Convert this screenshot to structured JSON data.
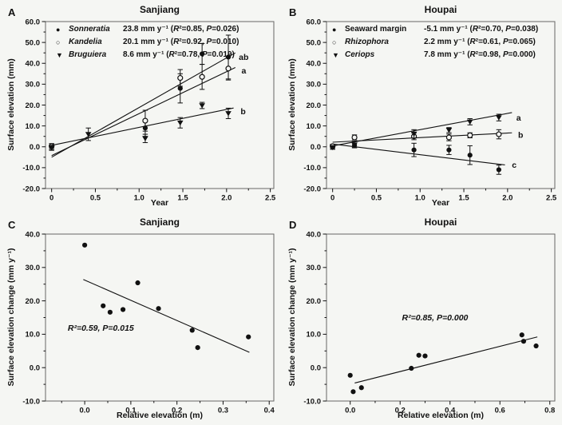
{
  "figure": {
    "background": "#f5f6f3",
    "ink": "#111111",
    "frame_color": "#666666"
  },
  "labels": {
    "open": "(",
    "close": ")",
    "sep": ", ",
    "r2_eq": "R²=",
    "p_eq": "P="
  },
  "glyphs": {
    "filled-circle": "●",
    "open-circle": "○",
    "filled-triangle": "▼"
  },
  "chart_data": [
    {
      "type": "scatter",
      "panel": "A",
      "title": "Sanjiang",
      "xlabel": "Year",
      "ylabel": "Surface elevation (mm)",
      "xlim": [
        -0.07,
        2.54
      ],
      "ylim": [
        -20,
        60
      ],
      "xticks": {
        "vals": [
          0,
          0.5,
          1.0,
          1.5,
          2.0,
          2.5
        ],
        "labels": [
          "0",
          "0.5",
          "1.0",
          "1.5",
          "2.0",
          "2.5"
        ],
        "minor": 0.25
      },
      "yticks": {
        "vals": [
          -20,
          -10,
          0,
          10,
          20,
          30,
          40,
          50,
          60
        ],
        "labels": [
          "-20.0",
          "-10.0",
          "0.0",
          "10.0",
          "20.0",
          "30.0",
          "40.0",
          "50.0",
          "60.0"
        ],
        "minor": 5
      },
      "legend": {
        "entries": [
          {
            "marker": "filled-circle",
            "name": "Sonneratia",
            "italic": true,
            "rate": "23.8 mm y⁻¹",
            "r2": "0.85",
            "p": "0.026"
          },
          {
            "marker": "open-circle",
            "name": "Kandelia",
            "italic": true,
            "rate": "20.1 mm y⁻¹",
            "r2": "0.92",
            "p": "0.010"
          },
          {
            "marker": "filled-triangle",
            "name": "Bruguiera",
            "italic": true,
            "rate": "8.6 mm y⁻¹",
            "r2": "0.78",
            "p": "0.019"
          }
        ]
      },
      "series": [
        {
          "name": "Sonneratia",
          "marker": "filled-circle",
          "points": [
            [
              0,
              0,
              1.5
            ],
            [
              1.07,
              9,
              4
            ],
            [
              1.47,
              28,
              7
            ],
            [
              1.72,
              44.5,
              5
            ],
            [
              2.02,
              43,
              10.5
            ]
          ],
          "line": [
            [
              0,
              -5
            ],
            [
              2.1,
              45
            ]
          ],
          "end_label": {
            "text": "ab",
            "x": 2.14,
            "y": 43
          }
        },
        {
          "name": "Kandelia",
          "marker": "open-circle",
          "points": [
            [
              0,
              0.3,
              1.2
            ],
            [
              1.07,
              12.5,
              5
            ],
            [
              1.47,
              33,
              4
            ],
            [
              1.72,
              33.5,
              6
            ],
            [
              2.02,
              37.5,
              5.5
            ]
          ],
          "line": [
            [
              0,
              -4.2
            ],
            [
              2.1,
              38
            ]
          ],
          "end_label": {
            "text": "a",
            "x": 2.17,
            "y": 36.5
          }
        },
        {
          "name": "Bruguiera",
          "marker": "filled-triangle",
          "points": [
            [
              0,
              -0.5,
              1.2
            ],
            [
              0.42,
              6,
              3
            ],
            [
              1.07,
              4,
              2
            ],
            [
              1.47,
              11.5,
              2.5
            ],
            [
              1.72,
              19.8,
              1.5
            ],
            [
              2.02,
              16,
              2.5
            ]
          ],
          "line": [
            [
              0,
              0.7
            ],
            [
              2.08,
              18.6
            ]
          ],
          "end_label": {
            "text": "b",
            "x": 2.16,
            "y": 17
          }
        }
      ],
      "annotation": null
    },
    {
      "type": "scatter",
      "panel": "B",
      "title": "Houpai",
      "xlabel": "Year",
      "ylabel": "Surface elevation (mm)",
      "xlim": [
        -0.07,
        2.54
      ],
      "ylim": [
        -20,
        60
      ],
      "xticks": {
        "vals": [
          0,
          0.5,
          1.0,
          1.5,
          2.0,
          2.5
        ],
        "labels": [
          "0",
          "0.5",
          "1.0",
          "1.5",
          "2.0",
          "2.5"
        ],
        "minor": 0.25
      },
      "yticks": {
        "vals": [
          -20,
          -10,
          0,
          10,
          20,
          30,
          40,
          50,
          60
        ],
        "labels": [
          "-20.0",
          "-10.0",
          "0.0",
          "10.0",
          "20.0",
          "30.0",
          "40.0",
          "50.0",
          "60.0"
        ],
        "minor": 5
      },
      "legend": {
        "entries": [
          {
            "marker": "filled-circle",
            "name": "Seaward margin",
            "italic": false,
            "rate": "-5.1 mm y⁻¹",
            "r2": "0.70",
            "p": "0.038"
          },
          {
            "marker": "open-circle",
            "name": "Rhizophora",
            "italic": true,
            "rate": "2.2 mm y⁻¹",
            "r2": "0.61",
            "p": "0.065"
          },
          {
            "marker": "filled-triangle",
            "name": "Ceriops",
            "italic": true,
            "rate": "7.8 mm y⁻¹",
            "r2": "0.98",
            "p": "0.000"
          }
        ]
      },
      "series": [
        {
          "name": "Seaward margin",
          "marker": "filled-circle",
          "points": [
            [
              0,
              0,
              1.2
            ],
            [
              0.25,
              0.8,
              1
            ],
            [
              0.93,
              -1.5,
              3.2
            ],
            [
              1.33,
              -1.5,
              2.2
            ],
            [
              1.57,
              -4,
              4.5
            ],
            [
              1.9,
              -11,
              2.2
            ]
          ],
          "line": [
            [
              0,
              1.3
            ],
            [
              1.97,
              -8.7
            ]
          ],
          "end_label": {
            "text": "c",
            "x": 2.05,
            "y": -8.8
          }
        },
        {
          "name": "Rhizophora",
          "marker": "open-circle",
          "points": [
            [
              0,
              0.3,
              0.8
            ],
            [
              0.25,
              4.5,
              1.2
            ],
            [
              0.93,
              5,
              1.6
            ],
            [
              1.33,
              4.5,
              1.6
            ],
            [
              1.57,
              5.5,
              1.2
            ],
            [
              1.9,
              6,
              2.2
            ]
          ],
          "line": [
            [
              0,
              2.2
            ],
            [
              2.05,
              6.7
            ]
          ],
          "end_label": {
            "text": "b",
            "x": 2.12,
            "y": 5.6
          }
        },
        {
          "name": "Ceriops",
          "marker": "filled-triangle",
          "points": [
            [
              0,
              -0.3,
              0.8
            ],
            [
              0.25,
              1,
              1.5
            ],
            [
              0.93,
              6.2,
              2
            ],
            [
              1.33,
              8,
              1.2
            ],
            [
              1.57,
              12,
              1.5
            ],
            [
              1.9,
              14,
              1.6
            ]
          ],
          "line": [
            [
              0,
              0.4
            ],
            [
              2.05,
              16.4
            ]
          ],
          "end_label": {
            "text": "a",
            "x": 2.1,
            "y": 13.8
          }
        }
      ],
      "annotation": null
    },
    {
      "type": "scatter",
      "panel": "C",
      "title": "Sanjiang",
      "xlabel": "Relative elevation (m)",
      "ylabel": "Surface elevation change (mm y⁻¹)",
      "xlim": [
        -0.085,
        0.41
      ],
      "ylim": [
        -10,
        40
      ],
      "xticks": {
        "vals": [
          0,
          0.1,
          0.2,
          0.3,
          0.4
        ],
        "labels": [
          "0.0",
          "0.1",
          "0.2",
          "0.3",
          "0.4"
        ],
        "minor": 0.05
      },
      "yticks": {
        "vals": [
          -10,
          0,
          10,
          20,
          30,
          40
        ],
        "labels": [
          "-10.0",
          "0.0",
          "10.0",
          "20.0",
          "30.0",
          "40.0"
        ],
        "minor": 5
      },
      "legend": null,
      "series": [
        {
          "name": "Sanjiang plots",
          "marker": "filled-circle",
          "points": [
            [
              0.0,
              36.7,
              0
            ],
            [
              0.04,
              18.5,
              0
            ],
            [
              0.055,
              16.6,
              0
            ],
            [
              0.083,
              17.4,
              0
            ],
            [
              0.115,
              25.4,
              0
            ],
            [
              0.16,
              17.7,
              0
            ],
            [
              0.233,
              11.2,
              0
            ],
            [
              0.245,
              6.0,
              0
            ],
            [
              0.355,
              9.2,
              0
            ]
          ],
          "line": [
            [
              -0.003,
              26.4
            ],
            [
              0.357,
              4.6
            ]
          ],
          "end_label": null
        }
      ],
      "annotation": {
        "r2": "0.59",
        "p": "0.015",
        "x": 0.035,
        "y": 11.0
      }
    },
    {
      "type": "scatter",
      "panel": "D",
      "title": "Houpai",
      "xlabel": "Relative elevation (m)",
      "ylabel": "Surface elevation change (mm y⁻¹)",
      "xlim": [
        -0.095,
        0.82
      ],
      "ylim": [
        -10,
        40
      ],
      "xticks": {
        "vals": [
          0,
          0.2,
          0.4,
          0.6,
          0.8
        ],
        "labels": [
          "0.0",
          "0.2",
          "0.4",
          "0.6",
          "0.8"
        ],
        "minor": 0.1
      },
      "yticks": {
        "vals": [
          -10,
          0,
          10,
          20,
          30,
          40
        ],
        "labels": [
          "-10.0",
          "0.0",
          "10.0",
          "20.0",
          "30.0",
          "40.0"
        ],
        "minor": 5
      },
      "legend": null,
      "series": [
        {
          "name": "Houpai plots",
          "marker": "filled-circle",
          "points": [
            [
              0.0,
              -2.3,
              0
            ],
            [
              0.012,
              -7.2,
              0
            ],
            [
              0.045,
              -6.0,
              0
            ],
            [
              0.245,
              -0.2,
              0
            ],
            [
              0.275,
              3.7,
              0
            ],
            [
              0.3,
              3.5,
              0
            ],
            [
              0.688,
              9.8,
              0
            ],
            [
              0.695,
              7.9,
              0
            ],
            [
              0.745,
              6.5,
              0
            ]
          ],
          "line": [
            [
              0.018,
              -4.6
            ],
            [
              0.75,
              9.2
            ]
          ],
          "end_label": null
        }
      ],
      "annotation": {
        "r2": "0.85",
        "p": "0.000",
        "x": 0.34,
        "y": 14.2
      }
    }
  ]
}
